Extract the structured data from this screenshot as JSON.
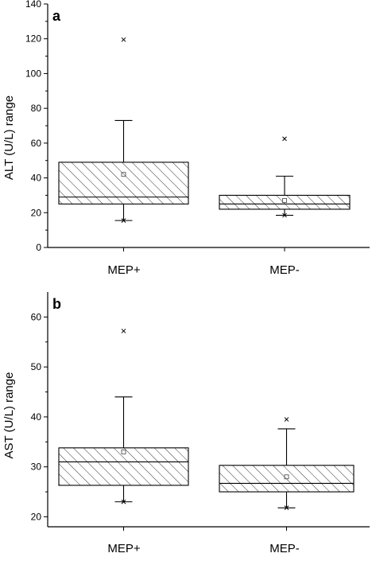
{
  "chart_data": [
    {
      "type": "box",
      "panel_label": "a",
      "ylabel": "ALT (U/L) range",
      "ylim": [
        0,
        140
      ],
      "yticks": [
        0,
        20,
        40,
        60,
        80,
        100,
        120,
        140
      ],
      "categories": [
        "MEP+",
        "MEP-"
      ],
      "boxes": [
        {
          "category": "MEP+",
          "q1": 25,
          "median": 29,
          "q3": 49,
          "whisker_low": 15.5,
          "whisker_high": 73,
          "mean": 42,
          "max_marker": 119.5,
          "min_marker": 15.5
        },
        {
          "category": "MEP-",
          "q1": 22,
          "median": 25,
          "q3": 30,
          "whisker_low": 18.5,
          "whisker_high": 41,
          "mean": 27,
          "max_marker": 62.5,
          "min_marker": 18.5
        }
      ],
      "fill": "hatch"
    },
    {
      "type": "box",
      "panel_label": "b",
      "ylabel": "AST (U/L) range",
      "ylim": [
        18,
        65
      ],
      "yticks": [
        20,
        30,
        40,
        50,
        60
      ],
      "categories": [
        "MEP+",
        "MEP-"
      ],
      "boxes": [
        {
          "category": "MEP+",
          "q1": 26.3,
          "median": 31,
          "q3": 33.8,
          "whisker_low": 23,
          "whisker_high": 44,
          "mean": 33,
          "max_marker": 57.2,
          "min_marker": 23
        },
        {
          "category": "MEP-",
          "q1": 25,
          "median": 26.7,
          "q3": 30.3,
          "whisker_low": 21.8,
          "whisker_high": 37.6,
          "mean": 28,
          "max_marker": 39.5,
          "min_marker": 21.8
        }
      ],
      "fill": "hatch"
    }
  ]
}
